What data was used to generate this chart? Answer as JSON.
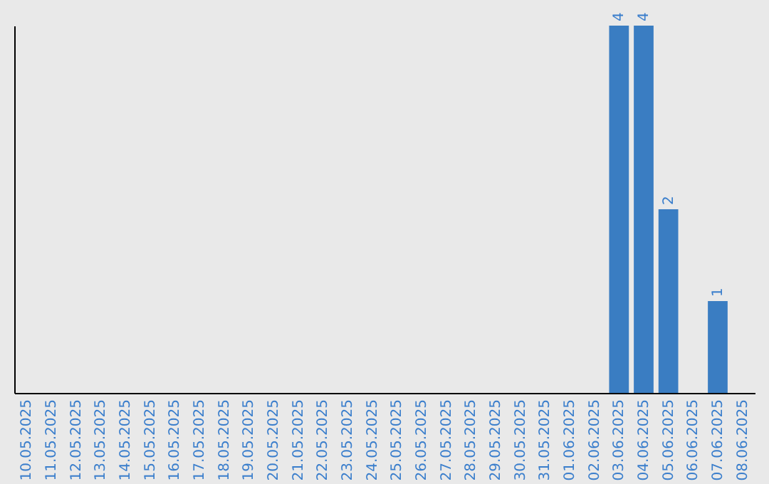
{
  "chart_data": {
    "type": "bar",
    "categories": [
      "10.05.2025",
      "11.05.2025",
      "12.05.2025",
      "13.05.2025",
      "14.05.2025",
      "15.05.2025",
      "16.05.2025",
      "17.05.2025",
      "18.05.2025",
      "19.05.2025",
      "20.05.2025",
      "21.05.2025",
      "22.05.2025",
      "23.05.2025",
      "24.05.2025",
      "25.05.2025",
      "26.05.2025",
      "27.05.2025",
      "28.05.2025",
      "29.05.2025",
      "30.05.2025",
      "31.05.2025",
      "01.06.2025",
      "02.06.2025",
      "03.06.2025",
      "04.06.2025",
      "05.06.2025",
      "06.06.2025",
      "07.06.2025",
      "08.06.2025"
    ],
    "values": [
      null,
      null,
      null,
      null,
      null,
      null,
      null,
      null,
      null,
      null,
      null,
      null,
      null,
      null,
      null,
      null,
      null,
      null,
      null,
      null,
      null,
      null,
      null,
      null,
      4,
      4,
      2,
      null,
      1,
      null
    ],
    "data_labels": true,
    "color": "#3a7dc2",
    "ylim": [
      0,
      4
    ],
    "tick_labels": "x",
    "grid": false
  }
}
